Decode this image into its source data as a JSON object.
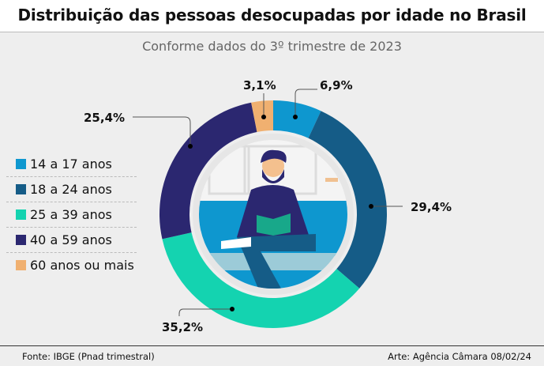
{
  "title": "Distribuição das pessoas desocupadas por idade no Brasil",
  "subtitle": "Conforme dados do 3º trimestre de 2023",
  "chart_data": {
    "type": "pie",
    "title": "Distribuição das pessoas desocupadas por idade no Brasil",
    "subtitle": "Conforme dados do 3º trimestre de 2023",
    "donut": true,
    "legend_position": "left",
    "categories": [
      "14 a 17 anos",
      "18 a 24 anos",
      "25 a 39 anos",
      "40 a 59 anos",
      "60 anos ou mais"
    ],
    "values": [
      6.9,
      29.4,
      35.2,
      25.4,
      3.1
    ],
    "labels": [
      "6,9%",
      "29,4%",
      "35,2%",
      "25,4%",
      "3,1%"
    ],
    "colors": [
      "#0e97cf",
      "#155c87",
      "#14d3b0",
      "#2b2770",
      "#f0b070"
    ]
  },
  "footer": {
    "source": "Fonte: IBGE (Pnad trimestral)",
    "credit": "Arte: Agência Câmara 08/02/24"
  }
}
